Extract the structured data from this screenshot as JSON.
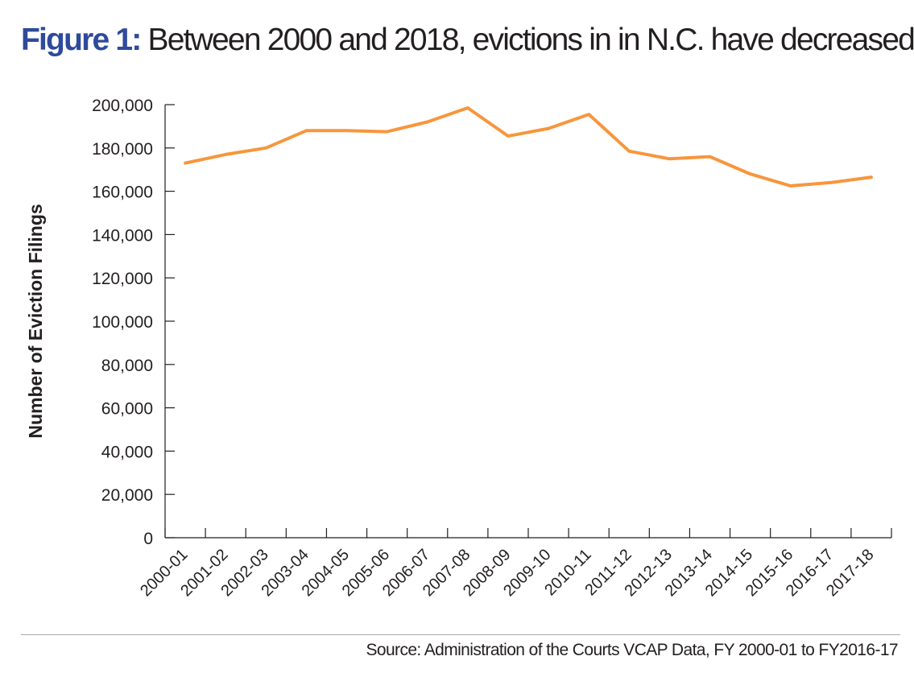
{
  "title": {
    "figure_label": "Figure 1:",
    "text": "Between 2000 and 2018, evictions in in N.C. have decreased."
  },
  "source": "Source: Administration of the Courts VCAP Data, FY 2000-01 to FY2016-17",
  "colors": {
    "line": "#f7963d",
    "title_accent": "#2e4a9b",
    "axis": "#231f20"
  },
  "chart_data": {
    "type": "line",
    "title": "",
    "xlabel": "",
    "ylabel": "Number of Eviction Filings",
    "ylim": [
      0,
      200000
    ],
    "yticks": [
      "0",
      "20,000",
      "40,000",
      "60,000",
      "80,000",
      "100,000",
      "120,000",
      "140,000",
      "160,000",
      "180,000",
      "200,000"
    ],
    "grid": false,
    "legend": "none",
    "categories": [
      "2000-01",
      "2001-02",
      "2002-03",
      "2003-04",
      "2004-05",
      "2005-06",
      "2006-07",
      "2007-08",
      "2008-09",
      "2009-10",
      "2010-11",
      "2011-12",
      "2012-13",
      "2013-14",
      "2014-15",
      "2015-16",
      "2016-17",
      "2017-18"
    ],
    "series": [
      {
        "values": [
          173000,
          177000,
          180000,
          188000,
          188000,
          187500,
          192000,
          198500,
          185500,
          189000,
          195500,
          178500,
          175000,
          176000,
          168000,
          162500,
          164000,
          166500
        ]
      }
    ]
  }
}
